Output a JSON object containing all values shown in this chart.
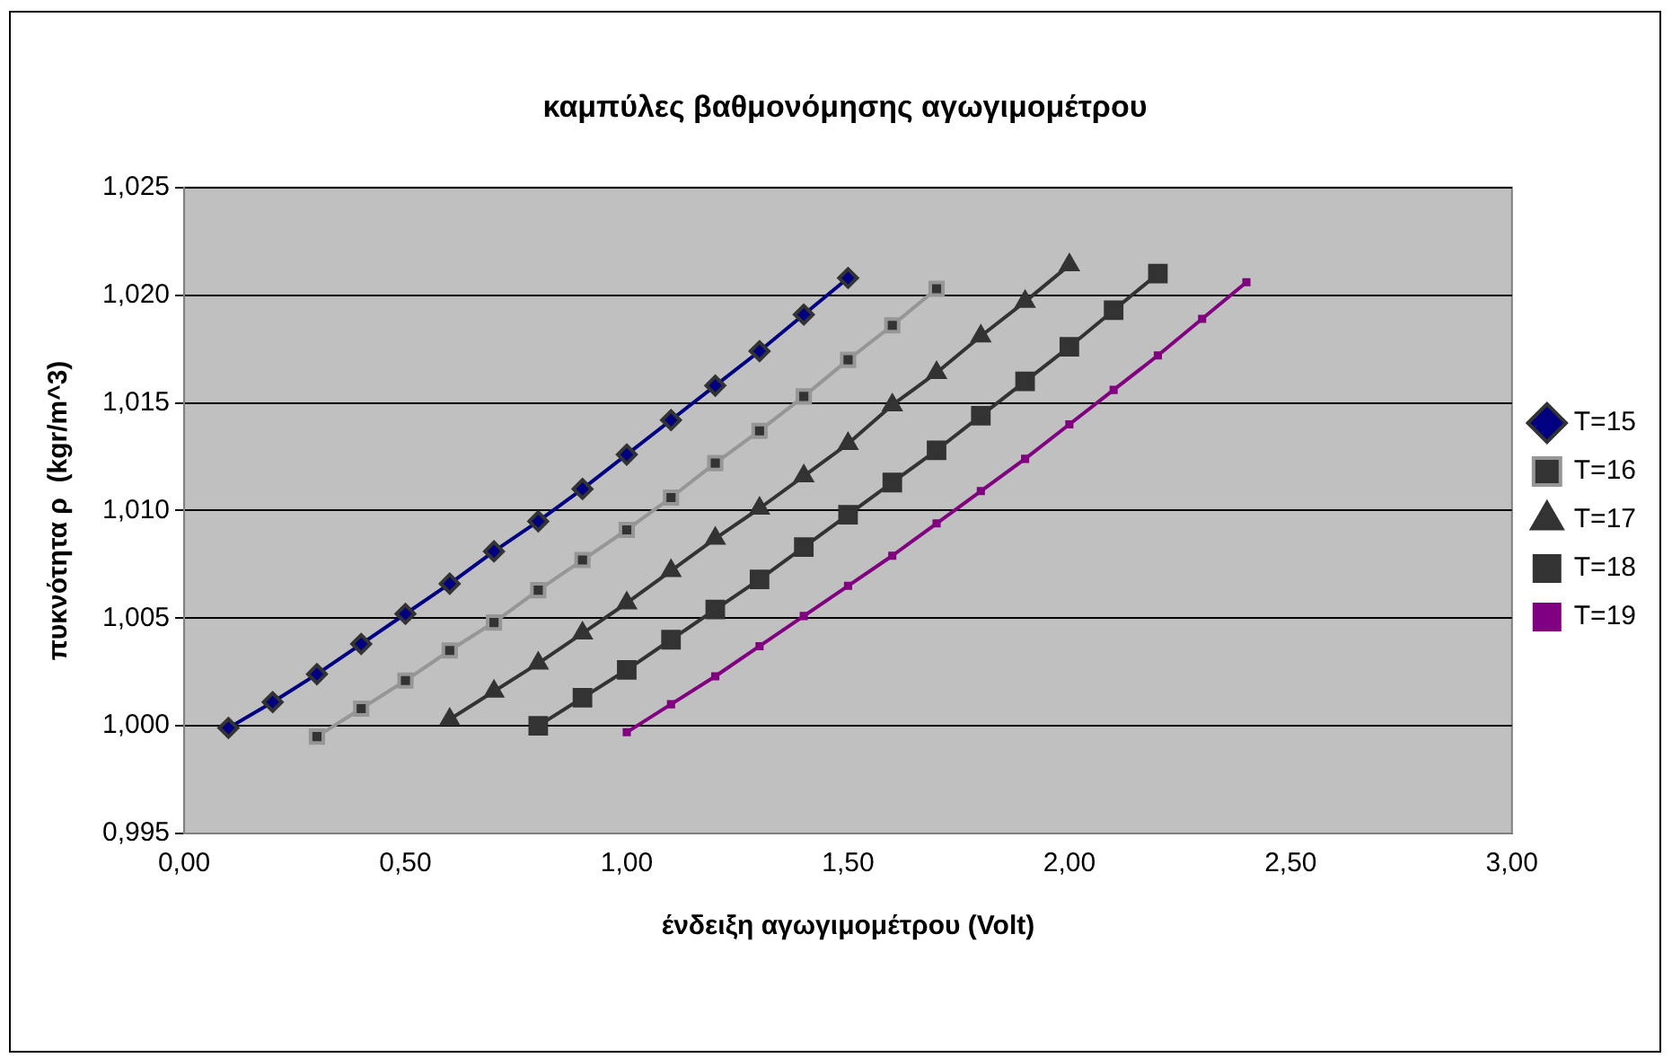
{
  "chart_data": {
    "type": "line",
    "title": "καμπύλες βαθμονόμησης αγωγιμομέτρου",
    "xlabel": "ένδειξη αγωγιμομέτρου (Volt)",
    "ylabel": "πυκνότητα ρ  (kgr/m^3)",
    "xlim": [
      0,
      3
    ],
    "xticks": [
      {
        "value": 0,
        "label": "0,00"
      },
      {
        "value": 0.5,
        "label": "0,50"
      },
      {
        "value": 1,
        "label": "1,00"
      },
      {
        "value": 1.5,
        "label": "1,50"
      },
      {
        "value": 2,
        "label": "2,00"
      },
      {
        "value": 2.5,
        "label": "2,50"
      },
      {
        "value": 3,
        "label": "3,00"
      }
    ],
    "ylim": [
      0.995,
      1.025
    ],
    "yticks": [
      {
        "value": 0.995,
        "label": "0,995"
      },
      {
        "value": 1,
        "label": "1,000"
      },
      {
        "value": 1.005,
        "label": "1,005"
      },
      {
        "value": 1.01,
        "label": "1,010"
      },
      {
        "value": 1.015,
        "label": "1,015"
      },
      {
        "value": 1.02,
        "label": "1,020"
      },
      {
        "value": 1.025,
        "label": "1,025"
      }
    ],
    "grid": "y",
    "legend": "right",
    "line_style": "solid",
    "series": [
      {
        "name": "T=15",
        "color": "#000080",
        "marker": "diamond",
        "x": [
          0.1,
          0.2,
          0.3,
          0.4,
          0.5,
          0.6,
          0.7,
          0.8,
          0.9,
          1.0,
          1.1,
          1.2,
          1.3,
          1.4,
          1.5
        ],
        "values": [
          0.9999,
          1.0011,
          1.0024,
          1.0038,
          1.0052,
          1.0066,
          1.0081,
          1.0095,
          1.011,
          1.0126,
          1.0142,
          1.0158,
          1.0174,
          1.0191,
          1.0208
        ]
      },
      {
        "name": "T=16",
        "color": "#969696",
        "marker": "square",
        "x": [
          0.3,
          0.4,
          0.5,
          0.6,
          0.7,
          0.8,
          0.9,
          1.0,
          1.1,
          1.2,
          1.3,
          1.4,
          1.5,
          1.6,
          1.7
        ],
        "values": [
          0.9995,
          1.0008,
          1.0021,
          1.0035,
          1.0048,
          1.0063,
          1.0077,
          1.0091,
          1.0106,
          1.0122,
          1.0137,
          1.0153,
          1.017,
          1.0186,
          1.0203
        ]
      },
      {
        "name": "T=17",
        "color": "#333333",
        "marker": "triangle",
        "x": [
          0.6,
          0.7,
          0.8,
          0.9,
          1.0,
          1.1,
          1.2,
          1.3,
          1.4,
          1.5,
          1.6,
          1.7,
          1.8,
          1.9,
          2.0
        ],
        "values": [
          1.0003,
          1.0016,
          1.0029,
          1.0043,
          1.0057,
          1.0072,
          1.0087,
          1.0101,
          1.0116,
          1.0131,
          1.0149,
          1.0164,
          1.0181,
          1.0197,
          1.0214
        ]
      },
      {
        "name": "T=18",
        "color": "#333333",
        "marker": "square",
        "x": [
          0.8,
          0.9,
          1.0,
          1.1,
          1.2,
          1.3,
          1.4,
          1.5,
          1.6,
          1.7,
          1.8,
          1.9,
          2.0,
          2.1,
          2.2
        ],
        "values": [
          1.0,
          1.0013,
          1.0026,
          1.004,
          1.0054,
          1.0068,
          1.0083,
          1.0098,
          1.0113,
          1.0128,
          1.0144,
          1.016,
          1.0176,
          1.0193,
          1.021
        ]
      },
      {
        "name": "T=19",
        "color": "#800080",
        "marker": "square",
        "x": [
          1.0,
          1.1,
          1.2,
          1.3,
          1.4,
          1.5,
          1.6,
          1.7,
          1.8,
          1.9,
          2.0,
          2.1,
          2.2,
          2.3,
          2.4
        ],
        "values": [
          0.9997,
          1.001,
          1.0023,
          1.0037,
          1.0051,
          1.0065,
          1.0079,
          1.0094,
          1.0109,
          1.0124,
          1.014,
          1.0156,
          1.0172,
          1.0189,
          1.0206
        ]
      }
    ]
  }
}
